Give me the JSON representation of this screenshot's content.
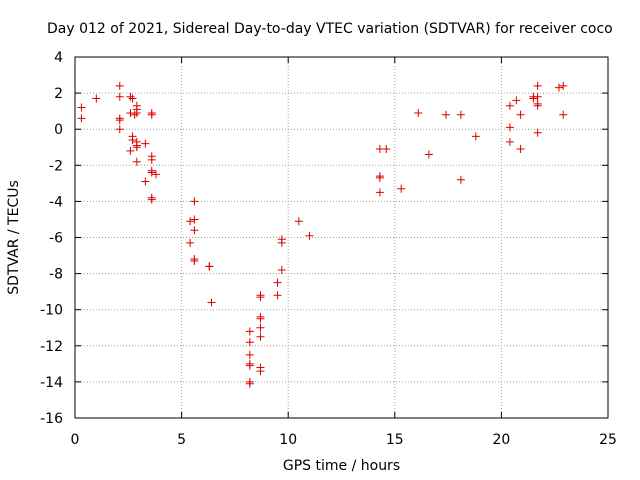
{
  "chart_data": {
    "type": "scatter",
    "title": "Day 012 of 2021, Sidereal Day-to-day VTEC variation (SDTVAR) for receiver coco",
    "xlabel": "GPS time / hours",
    "ylabel": "SDTVAR / TECUs",
    "xlim": [
      0,
      25
    ],
    "ylim": [
      -16,
      4
    ],
    "xticks": [
      0,
      5,
      10,
      15,
      20,
      25
    ],
    "xtick_labels": [
      "0",
      "5",
      "10",
      "15",
      "20",
      "25"
    ],
    "yticks": [
      -16,
      -14,
      -12,
      -10,
      -8,
      -6,
      -4,
      -2,
      0,
      2,
      4
    ],
    "ytick_labels": [
      "-16",
      "-14",
      "-12",
      "-10",
      "-8",
      "-6",
      "-4",
      "-2",
      "0",
      "2",
      "4"
    ],
    "grid": true,
    "marker": "+",
    "color": "#dd0000",
    "points": [
      [
        0.3,
        1.2
      ],
      [
        0.3,
        0.6
      ],
      [
        1.0,
        1.7
      ],
      [
        2.1,
        2.4
      ],
      [
        2.1,
        1.8
      ],
      [
        2.1,
        0.6
      ],
      [
        2.1,
        0.5
      ],
      [
        2.1,
        0.0
      ],
      [
        2.6,
        1.8
      ],
      [
        2.7,
        1.7
      ],
      [
        2.6,
        0.9
      ],
      [
        2.7,
        -0.4
      ],
      [
        2.7,
        -0.6
      ],
      [
        2.6,
        -1.2
      ],
      [
        2.9,
        1.3
      ],
      [
        2.9,
        1.1
      ],
      [
        2.9,
        0.9
      ],
      [
        2.8,
        0.8
      ],
      [
        2.9,
        -0.7
      ],
      [
        2.9,
        -0.9
      ],
      [
        2.9,
        -1.0
      ],
      [
        2.9,
        -1.8
      ],
      [
        3.3,
        -0.8
      ],
      [
        3.3,
        -2.9
      ],
      [
        3.6,
        0.9
      ],
      [
        3.6,
        0.8
      ],
      [
        3.6,
        -1.5
      ],
      [
        3.6,
        -1.7
      ],
      [
        3.6,
        -2.3
      ],
      [
        3.6,
        -2.4
      ],
      [
        3.6,
        -3.8
      ],
      [
        3.6,
        -3.9
      ],
      [
        3.8,
        -2.5
      ],
      [
        5.4,
        -5.1
      ],
      [
        5.4,
        -6.3
      ],
      [
        5.6,
        -4.0
      ],
      [
        5.6,
        -5.0
      ],
      [
        5.6,
        -5.6
      ],
      [
        5.6,
        -7.2
      ],
      [
        5.6,
        -7.3
      ],
      [
        6.3,
        -7.6
      ],
      [
        6.3,
        -7.6
      ],
      [
        6.4,
        -9.6
      ],
      [
        8.2,
        -11.2
      ],
      [
        8.2,
        -11.8
      ],
      [
        8.2,
        -12.5
      ],
      [
        8.2,
        -13.0
      ],
      [
        8.2,
        -13.1
      ],
      [
        8.2,
        -14.0
      ],
      [
        8.2,
        -14.1
      ],
      [
        8.7,
        -9.3
      ],
      [
        8.7,
        -9.2
      ],
      [
        8.7,
        -10.4
      ],
      [
        8.7,
        -10.5
      ],
      [
        8.7,
        -11.0
      ],
      [
        8.7,
        -11.5
      ],
      [
        8.7,
        -13.2
      ],
      [
        8.7,
        -13.4
      ],
      [
        9.5,
        -8.5
      ],
      [
        9.5,
        -9.2
      ],
      [
        9.7,
        -6.1
      ],
      [
        9.7,
        -6.3
      ],
      [
        9.7,
        -7.8
      ],
      [
        10.5,
        -5.1
      ],
      [
        11.0,
        -5.9
      ],
      [
        14.3,
        -1.1
      ],
      [
        14.3,
        -2.6
      ],
      [
        14.3,
        -2.7
      ],
      [
        14.3,
        -3.5
      ],
      [
        14.6,
        -1.1
      ],
      [
        15.3,
        -3.3
      ],
      [
        16.1,
        0.9
      ],
      [
        16.6,
        -1.4
      ],
      [
        17.4,
        0.8
      ],
      [
        18.1,
        0.8
      ],
      [
        18.1,
        -2.8
      ],
      [
        18.8,
        -0.4
      ],
      [
        20.4,
        1.3
      ],
      [
        20.4,
        0.1
      ],
      [
        20.4,
        -0.7
      ],
      [
        20.7,
        1.6
      ],
      [
        20.9,
        0.8
      ],
      [
        20.9,
        -1.1
      ],
      [
        21.5,
        1.8
      ],
      [
        21.5,
        1.7
      ],
      [
        21.7,
        2.4
      ],
      [
        21.7,
        1.8
      ],
      [
        21.7,
        1.4
      ],
      [
        21.7,
        1.3
      ],
      [
        21.7,
        -0.2
      ],
      [
        22.7,
        2.3
      ],
      [
        22.9,
        2.4
      ],
      [
        22.9,
        0.8
      ]
    ]
  }
}
